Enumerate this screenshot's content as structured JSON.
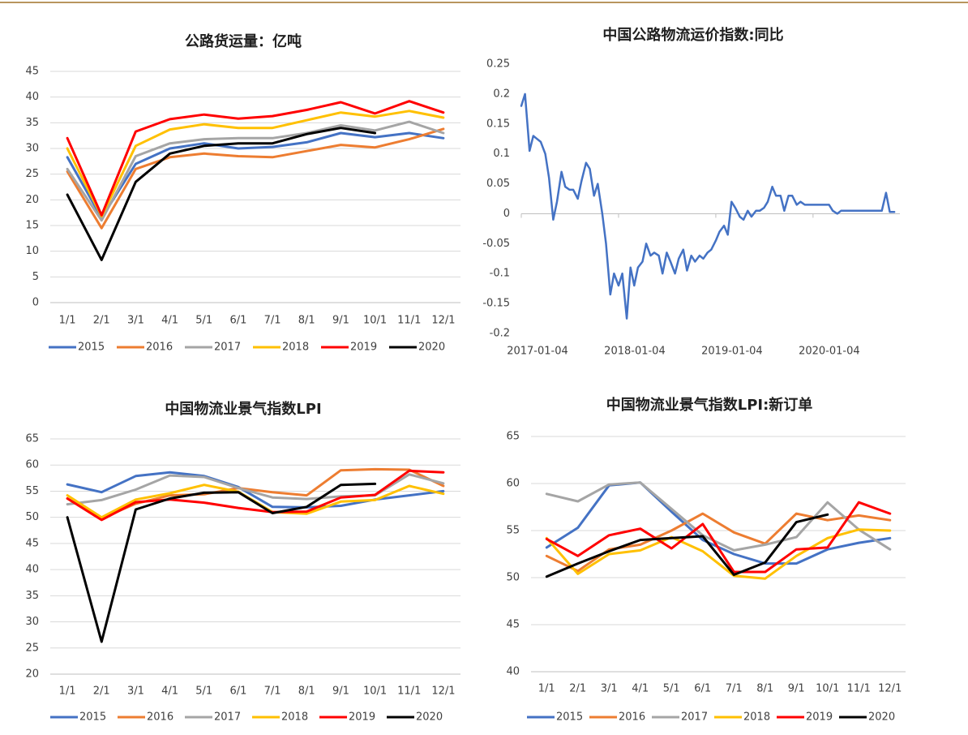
{
  "chart_data": [
    {
      "type": "line",
      "title": "公路货运量：亿吨",
      "categories": [
        "1/1",
        "2/1",
        "3/1",
        "4/1",
        "5/1",
        "6/1",
        "7/1",
        "8/1",
        "9/1",
        "10/1",
        "11/1",
        "12/1"
      ],
      "ylim": [
        0,
        45
      ],
      "yticks": [
        0,
        5,
        10,
        15,
        20,
        25,
        30,
        35,
        40,
        45
      ],
      "grid": true,
      "legend": "bottom",
      "series": [
        {
          "name": "2015",
          "color": "#4472c4",
          "values": [
            28.3,
            16.5,
            27,
            30,
            31,
            30,
            30.3,
            31.2,
            33,
            32.2,
            33,
            32
          ]
        },
        {
          "name": "2016",
          "color": "#ed7d31",
          "values": [
            25.5,
            14.5,
            26,
            28.3,
            29,
            28.5,
            28.3,
            29.5,
            30.7,
            30.2,
            31.8,
            33.8
          ]
        },
        {
          "name": "2017",
          "color": "#a5a5a5",
          "values": [
            26,
            16,
            28.5,
            31,
            31.8,
            32,
            32,
            33,
            34.5,
            33.5,
            35.2,
            33
          ]
        },
        {
          "name": "2018",
          "color": "#ffc000",
          "values": [
            30,
            16.8,
            30.5,
            33.7,
            34.7,
            34,
            34,
            35.5,
            37,
            36.2,
            37.3,
            36
          ]
        },
        {
          "name": "2019",
          "color": "#ff0000",
          "values": [
            32,
            17,
            33.3,
            35.7,
            36.6,
            35.8,
            36.3,
            37.5,
            39,
            36.8,
            39.2,
            37
          ]
        },
        {
          "name": "2020",
          "color": "#000000",
          "values": [
            21,
            8.3,
            23.5,
            29,
            30.5,
            31,
            31,
            32.8,
            34,
            33,
            null,
            null
          ]
        }
      ]
    },
    {
      "type": "line",
      "title": "中国公路物流运价指数:同比",
      "color": "#4472c4",
      "grid": false,
      "xlim": [
        "2017-01-04",
        "2020-11-25"
      ],
      "xticks": [
        "2017-01-04",
        "2018-01-04",
        "2019-01-04",
        "2020-01-04"
      ],
      "ylim": [
        -0.2,
        0.25
      ],
      "yticks": [
        -0.2,
        -0.15,
        -0.1,
        -0.05,
        0,
        0.05,
        0.1,
        0.15,
        0.2,
        0.25
      ],
      "x": [
        "2017-01-04",
        "2017-01-18",
        "2017-02-04",
        "2017-02-18",
        "2017-03-04",
        "2017-03-18",
        "2017-04-04",
        "2017-04-18",
        "2017-05-04",
        "2017-05-18",
        "2017-06-04",
        "2017-06-18",
        "2017-07-04",
        "2017-07-18",
        "2017-08-04",
        "2017-08-18",
        "2017-09-04",
        "2017-09-18",
        "2017-10-04",
        "2017-10-18",
        "2017-11-04",
        "2017-11-18",
        "2017-12-04",
        "2017-12-18",
        "2018-01-04",
        "2018-01-18",
        "2018-02-04",
        "2018-02-18",
        "2018-03-04",
        "2018-03-18",
        "2018-04-04",
        "2018-04-18",
        "2018-05-04",
        "2018-05-18",
        "2018-06-04",
        "2018-06-18",
        "2018-07-04",
        "2018-07-18",
        "2018-08-04",
        "2018-08-18",
        "2018-09-04",
        "2018-09-18",
        "2018-10-04",
        "2018-10-18",
        "2018-11-04",
        "2018-11-18",
        "2018-12-04",
        "2018-12-18",
        "2019-01-04",
        "2019-01-18",
        "2019-02-04",
        "2019-02-18",
        "2019-03-04",
        "2019-03-18",
        "2019-04-04",
        "2019-04-18",
        "2019-05-04",
        "2019-05-18",
        "2019-06-04",
        "2019-06-18",
        "2019-07-04",
        "2019-07-18",
        "2019-08-04",
        "2019-08-18",
        "2019-09-04",
        "2019-09-18",
        "2019-10-04",
        "2019-10-18",
        "2019-11-04",
        "2019-11-18",
        "2019-12-04",
        "2019-12-18",
        "2020-01-04",
        "2020-01-18",
        "2020-02-04",
        "2020-02-18",
        "2020-03-04",
        "2020-03-18",
        "2020-04-04",
        "2020-04-18",
        "2020-05-04",
        "2020-05-18",
        "2020-06-04",
        "2020-06-18",
        "2020-07-04",
        "2020-07-18",
        "2020-08-04",
        "2020-08-18",
        "2020-09-04",
        "2020-09-18",
        "2020-10-04",
        "2020-10-18",
        "2020-11-04"
      ],
      "values": [
        0.18,
        0.2,
        0.105,
        0.13,
        0.125,
        0.12,
        0.1,
        0.06,
        -0.01,
        0.02,
        0.07,
        0.045,
        0.04,
        0.04,
        0.025,
        0.055,
        0.085,
        0.075,
        0.03,
        0.05,
        0,
        -0.05,
        -0.135,
        -0.1,
        -0.12,
        -0.1,
        -0.175,
        -0.09,
        -0.12,
        -0.09,
        -0.08,
        -0.05,
        -0.07,
        -0.065,
        -0.07,
        -0.1,
        -0.065,
        -0.08,
        -0.1,
        -0.075,
        -0.06,
        -0.095,
        -0.07,
        -0.08,
        -0.07,
        -0.075,
        -0.065,
        -0.06,
        -0.045,
        -0.03,
        -0.02,
        -0.035,
        0.02,
        0.01,
        -0.005,
        -0.01,
        0.005,
        -0.005,
        0.005,
        0.005,
        0.01,
        0.02,
        0.045,
        0.03,
        0.03,
        0.005,
        0.03,
        0.03,
        0.015,
        0.02,
        0.015,
        0.015,
        0.015,
        0.015,
        0.015,
        0.015,
        0.015,
        0.005,
        0,
        0.005,
        0.005,
        0.005,
        0.005,
        0.005,
        0.005,
        0.005,
        0.005,
        0.005,
        0.005,
        0.005,
        0.035,
        0.003,
        0.003
      ]
    },
    {
      "type": "line",
      "title": "中国物流业景气指数LPI",
      "categories": [
        "1/1",
        "2/1",
        "3/1",
        "4/1",
        "5/1",
        "6/1",
        "7/1",
        "8/1",
        "9/1",
        "10/1",
        "11/1",
        "12/1"
      ],
      "ylim": [
        20,
        65
      ],
      "yticks": [
        20,
        25,
        30,
        35,
        40,
        45,
        50,
        55,
        60,
        65
      ],
      "grid": true,
      "legend": "bottom",
      "series": [
        {
          "name": "2015",
          "color": "#4472c4",
          "values": [
            56.3,
            54.8,
            57.9,
            58.6,
            57.9,
            55.8,
            52,
            51.9,
            52.2,
            53.4,
            54.2,
            55
          ]
        },
        {
          "name": "2016",
          "color": "#ed7d31",
          "values": [
            53.6,
            49.8,
            52.6,
            54.2,
            54.4,
            55.6,
            54.8,
            54.2,
            59,
            59.2,
            59.1,
            56
          ]
        },
        {
          "name": "2017",
          "color": "#a5a5a5",
          "values": [
            52.5,
            53.3,
            55.3,
            58,
            57.7,
            55.6,
            53.8,
            53.5,
            54,
            54.2,
            58.2,
            56.5
          ]
        },
        {
          "name": "2018",
          "color": "#ffc000",
          "values": [
            54.2,
            50,
            53.4,
            54.6,
            56.2,
            54.9,
            51,
            50.7,
            53,
            53.3,
            56,
            54.5
          ]
        },
        {
          "name": "2019",
          "color": "#ff0000",
          "values": [
            53.6,
            49.5,
            52.9,
            53.4,
            52.8,
            51.8,
            51,
            51.1,
            53.8,
            54.3,
            58.9,
            58.6
          ]
        },
        {
          "name": "2020",
          "color": "#000000",
          "values": [
            50,
            26.2,
            51.5,
            53.6,
            54.7,
            54.8,
            50.8,
            52,
            56.2,
            56.4,
            null,
            null
          ]
        }
      ]
    },
    {
      "type": "line",
      "title": "中国物流业景气指数LPI:新订单",
      "categories": [
        "1/1",
        "2/1",
        "3/1",
        "4/1",
        "5/1",
        "6/1",
        "7/1",
        "8/1",
        "9/1",
        "10/1",
        "11/1",
        "12/1"
      ],
      "ylim": [
        40,
        65
      ],
      "yticks": [
        40,
        45,
        50,
        55,
        60,
        65
      ],
      "grid": true,
      "legend": "bottom",
      "series": [
        {
          "name": "2015",
          "color": "#4472c4",
          "values": [
            53.2,
            55.3,
            59.8,
            60.1,
            57,
            54,
            52.5,
            51.5,
            51.5,
            53,
            53.7,
            54.2
          ]
        },
        {
          "name": "2016",
          "color": "#ed7d31",
          "values": [
            52.3,
            50.7,
            53,
            53.5,
            55,
            56.8,
            54.8,
            53.6,
            56.8,
            56.1,
            56.6,
            56.1
          ]
        },
        {
          "name": "2017",
          "color": "#a5a5a5",
          "values": [
            58.9,
            58.1,
            59.9,
            60.1,
            57.3,
            54.5,
            52.9,
            53.5,
            54.3,
            58,
            55.1,
            53
          ]
        },
        {
          "name": "2018",
          "color": "#ffc000",
          "values": [
            54.2,
            50.4,
            52.5,
            52.9,
            54.3,
            52.8,
            50.2,
            49.9,
            52.3,
            54.2,
            55.1,
            55
          ]
        },
        {
          "name": "2019",
          "color": "#ff0000",
          "values": [
            54.1,
            52.3,
            54.5,
            55.2,
            53.1,
            55.7,
            50.6,
            50.6,
            53,
            53.2,
            58,
            56.8
          ]
        },
        {
          "name": "2020",
          "color": "#000000",
          "values": [
            50.1,
            51.5,
            52.8,
            54,
            54.2,
            54.4,
            50.3,
            51.6,
            55.9,
            56.7,
            null,
            null
          ]
        }
      ]
    }
  ]
}
